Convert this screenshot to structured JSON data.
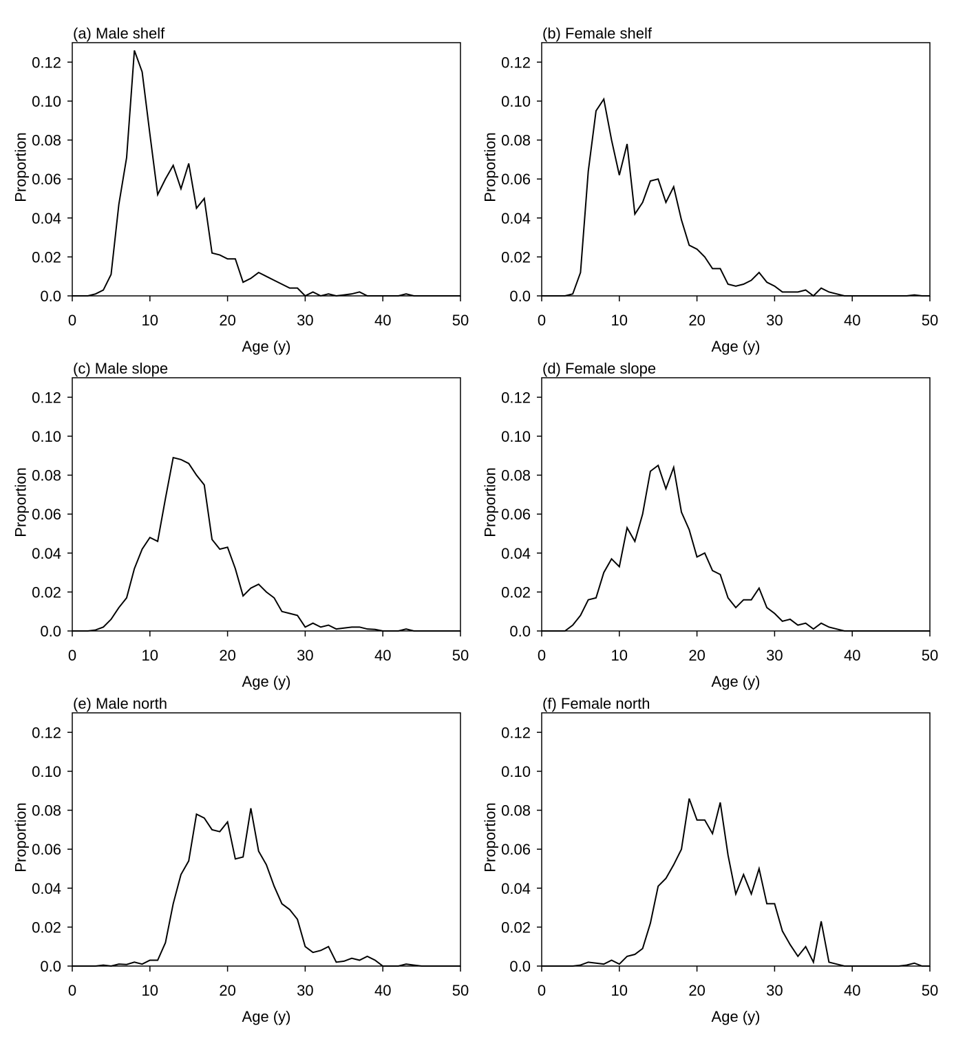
{
  "chart_data": [
    {
      "type": "line",
      "title": "(a) Male shelf",
      "xlabel": "Age (y)",
      "ylabel": "Proportion",
      "color": "#000000",
      "x": [
        0,
        1,
        2,
        3,
        4,
        5,
        6,
        7,
        8,
        9,
        10,
        11,
        12,
        13,
        14,
        15,
        16,
        17,
        18,
        19,
        20,
        21,
        22,
        23,
        24,
        25,
        26,
        27,
        28,
        29,
        30,
        31,
        32,
        33,
        34,
        35,
        36,
        37,
        38,
        39,
        40,
        41,
        42,
        43,
        44,
        45,
        46,
        47,
        48,
        49,
        50
      ],
      "values": [
        0,
        0,
        0,
        0.001,
        0.003,
        0.011,
        0.047,
        0.071,
        0.126,
        0.115,
        0.083,
        0.052,
        0.06,
        0.067,
        0.055,
        0.068,
        0.045,
        0.05,
        0.022,
        0.021,
        0.019,
        0.019,
        0.007,
        0.009,
        0.012,
        0.01,
        0.008,
        0.006,
        0.004,
        0.004,
        0,
        0.002,
        0,
        0.001,
        0,
        0.0005,
        0.001,
        0.002,
        0,
        0,
        0,
        0,
        0,
        0.001,
        0,
        0,
        0,
        0,
        0,
        0,
        0
      ],
      "xlim": [
        0,
        50
      ],
      "ylim": [
        0,
        0.13
      ],
      "xticks": [
        0,
        10,
        20,
        30,
        40,
        50
      ],
      "yticks": [
        {
          "value": 0,
          "label": "0.0"
        },
        0.02,
        0.04,
        0.06,
        0.08,
        {
          "value": 0.1,
          "label": "0.10"
        },
        0.12
      ]
    },
    {
      "type": "line",
      "title": "(b) Female shelf",
      "xlabel": "Age (y)",
      "ylabel": "Proportion",
      "color": "#000000",
      "x": [
        0,
        1,
        2,
        3,
        4,
        5,
        6,
        7,
        8,
        9,
        10,
        11,
        12,
        13,
        14,
        15,
        16,
        17,
        18,
        19,
        20,
        21,
        22,
        23,
        24,
        25,
        26,
        27,
        28,
        29,
        30,
        31,
        32,
        33,
        34,
        35,
        36,
        37,
        38,
        39,
        40,
        41,
        42,
        43,
        44,
        45,
        46,
        47,
        48,
        49,
        50
      ],
      "values": [
        0,
        0,
        0,
        0,
        0.001,
        0.012,
        0.064,
        0.095,
        0.101,
        0.08,
        0.062,
        0.078,
        0.042,
        0.048,
        0.059,
        0.06,
        0.048,
        0.056,
        0.039,
        0.026,
        0.024,
        0.02,
        0.014,
        0.014,
        0.006,
        0.005,
        0.006,
        0.008,
        0.012,
        0.007,
        0.005,
        0.002,
        0.002,
        0.002,
        0.003,
        0,
        0.004,
        0.002,
        0.001,
        0,
        0,
        0,
        0,
        0,
        0,
        0,
        0,
        0,
        0.0005,
        0,
        0
      ],
      "xlim": [
        0,
        50
      ],
      "ylim": [
        0,
        0.13
      ],
      "xticks": [
        0,
        10,
        20,
        30,
        40,
        50
      ],
      "yticks": [
        {
          "value": 0,
          "label": "0.0"
        },
        0.02,
        0.04,
        0.06,
        0.08,
        {
          "value": 0.1,
          "label": "0.10"
        },
        0.12
      ]
    },
    {
      "type": "line",
      "title": "(c) Male slope",
      "xlabel": "Age (y)",
      "ylabel": "Proportion",
      "color": "#000000",
      "x": [
        0,
        1,
        2,
        3,
        4,
        5,
        6,
        7,
        8,
        9,
        10,
        11,
        12,
        13,
        14,
        15,
        16,
        17,
        18,
        19,
        20,
        21,
        22,
        23,
        24,
        25,
        26,
        27,
        28,
        29,
        30,
        31,
        32,
        33,
        34,
        35,
        36,
        37,
        38,
        39,
        40,
        41,
        42,
        43,
        44,
        45,
        46,
        47,
        48,
        49,
        50
      ],
      "values": [
        0,
        0,
        0,
        0.0005,
        0.002,
        0.006,
        0.012,
        0.017,
        0.032,
        0.042,
        0.048,
        0.046,
        0.068,
        0.089,
        0.088,
        0.086,
        0.08,
        0.075,
        0.047,
        0.042,
        0.043,
        0.032,
        0.018,
        0.022,
        0.024,
        0.02,
        0.017,
        0.01,
        0.009,
        0.008,
        0.002,
        0.004,
        0.002,
        0.003,
        0.001,
        0.0015,
        0.002,
        0.002,
        0.001,
        0.0008,
        0,
        0,
        0,
        0.001,
        0,
        0,
        0,
        0,
        0,
        0,
        0
      ],
      "xlim": [
        0,
        50
      ],
      "ylim": [
        0,
        0.13
      ],
      "xticks": [
        0,
        10,
        20,
        30,
        40,
        50
      ],
      "yticks": [
        {
          "value": 0,
          "label": "0.0"
        },
        0.02,
        0.04,
        0.06,
        0.08,
        {
          "value": 0.1,
          "label": "0.10"
        },
        0.12
      ]
    },
    {
      "type": "line",
      "title": "(d) Female slope",
      "xlabel": "Age (y)",
      "ylabel": "Proportion",
      "color": "#000000",
      "x": [
        0,
        1,
        2,
        3,
        4,
        5,
        6,
        7,
        8,
        9,
        10,
        11,
        12,
        13,
        14,
        15,
        16,
        17,
        18,
        19,
        20,
        21,
        22,
        23,
        24,
        25,
        26,
        27,
        28,
        29,
        30,
        31,
        32,
        33,
        34,
        35,
        36,
        37,
        38,
        39,
        40,
        41,
        42,
        43,
        44,
        45,
        46,
        47,
        48,
        49,
        50
      ],
      "values": [
        0,
        0,
        0,
        0,
        0.003,
        0.008,
        0.016,
        0.017,
        0.03,
        0.037,
        0.033,
        0.053,
        0.046,
        0.06,
        0.082,
        0.085,
        0.073,
        0.084,
        0.061,
        0.052,
        0.038,
        0.04,
        0.031,
        0.029,
        0.017,
        0.012,
        0.016,
        0.016,
        0.022,
        0.012,
        0.009,
        0.005,
        0.006,
        0.003,
        0.004,
        0.001,
        0.004,
        0.002,
        0.001,
        0,
        0,
        0,
        0,
        0,
        0,
        0,
        0,
        0,
        0,
        0,
        0
      ],
      "xlim": [
        0,
        50
      ],
      "ylim": [
        0,
        0.13
      ],
      "xticks": [
        0,
        10,
        20,
        30,
        40,
        50
      ],
      "yticks": [
        {
          "value": 0,
          "label": "0.0"
        },
        0.02,
        0.04,
        0.06,
        0.08,
        {
          "value": 0.1,
          "label": "0.10"
        },
        0.12
      ]
    },
    {
      "type": "line",
      "title": "(e) Male north",
      "xlabel": "Age (y)",
      "ylabel": "Proportion",
      "color": "#000000",
      "x": [
        0,
        1,
        2,
        3,
        4,
        5,
        6,
        7,
        8,
        9,
        10,
        11,
        12,
        13,
        14,
        15,
        16,
        17,
        18,
        19,
        20,
        21,
        22,
        23,
        24,
        25,
        26,
        27,
        28,
        29,
        30,
        31,
        32,
        33,
        34,
        35,
        36,
        37,
        38,
        39,
        40,
        41,
        42,
        43,
        44,
        45,
        46,
        47,
        48,
        49,
        50
      ],
      "values": [
        0,
        0,
        0,
        0,
        0.0005,
        0,
        0.001,
        0.0008,
        0.002,
        0.001,
        0.003,
        0.003,
        0.012,
        0.032,
        0.047,
        0.054,
        0.078,
        0.076,
        0.07,
        0.069,
        0.074,
        0.055,
        0.056,
        0.081,
        0.059,
        0.052,
        0.041,
        0.032,
        0.029,
        0.024,
        0.01,
        0.007,
        0.008,
        0.01,
        0.002,
        0.0025,
        0.004,
        0.003,
        0.005,
        0.003,
        0,
        0,
        0,
        0.001,
        0.0005,
        0,
        0,
        0,
        0,
        0,
        0
      ],
      "xlim": [
        0,
        50
      ],
      "ylim": [
        0,
        0.13
      ],
      "xticks": [
        0,
        10,
        20,
        30,
        40,
        50
      ],
      "yticks": [
        {
          "value": 0,
          "label": "0.0"
        },
        0.02,
        0.04,
        0.06,
        0.08,
        {
          "value": 0.1,
          "label": "0.10"
        },
        0.12
      ]
    },
    {
      "type": "line",
      "title": "(f) Female north",
      "xlabel": "Age (y)",
      "ylabel": "Proportion",
      "color": "#000000",
      "x": [
        0,
        1,
        2,
        3,
        4,
        5,
        6,
        7,
        8,
        9,
        10,
        11,
        12,
        13,
        14,
        15,
        16,
        17,
        18,
        19,
        20,
        21,
        22,
        23,
        24,
        25,
        26,
        27,
        28,
        29,
        30,
        31,
        32,
        33,
        34,
        35,
        36,
        37,
        38,
        39,
        40,
        41,
        42,
        43,
        44,
        45,
        46,
        47,
        48,
        49,
        50
      ],
      "values": [
        0,
        0,
        0,
        0,
        0,
        0.0005,
        0.002,
        0.0015,
        0.001,
        0.003,
        0.001,
        0.005,
        0.006,
        0.009,
        0.022,
        0.041,
        0.045,
        0.052,
        0.06,
        0.086,
        0.075,
        0.075,
        0.068,
        0.084,
        0.057,
        0.037,
        0.047,
        0.037,
        0.05,
        0.032,
        0.032,
        0.018,
        0.011,
        0.005,
        0.01,
        0.002,
        0.023,
        0.002,
        0.001,
        0,
        0,
        0,
        0,
        0,
        0,
        0,
        0,
        0.0005,
        0.0015,
        0,
        0
      ],
      "xlim": [
        0,
        50
      ],
      "ylim": [
        0,
        0.13
      ],
      "xticks": [
        0,
        10,
        20,
        30,
        40,
        50
      ],
      "yticks": [
        {
          "value": 0,
          "label": "0.0"
        },
        0.02,
        0.04,
        0.06,
        0.08,
        {
          "value": 0.1,
          "label": "0.10"
        },
        0.12
      ]
    }
  ]
}
